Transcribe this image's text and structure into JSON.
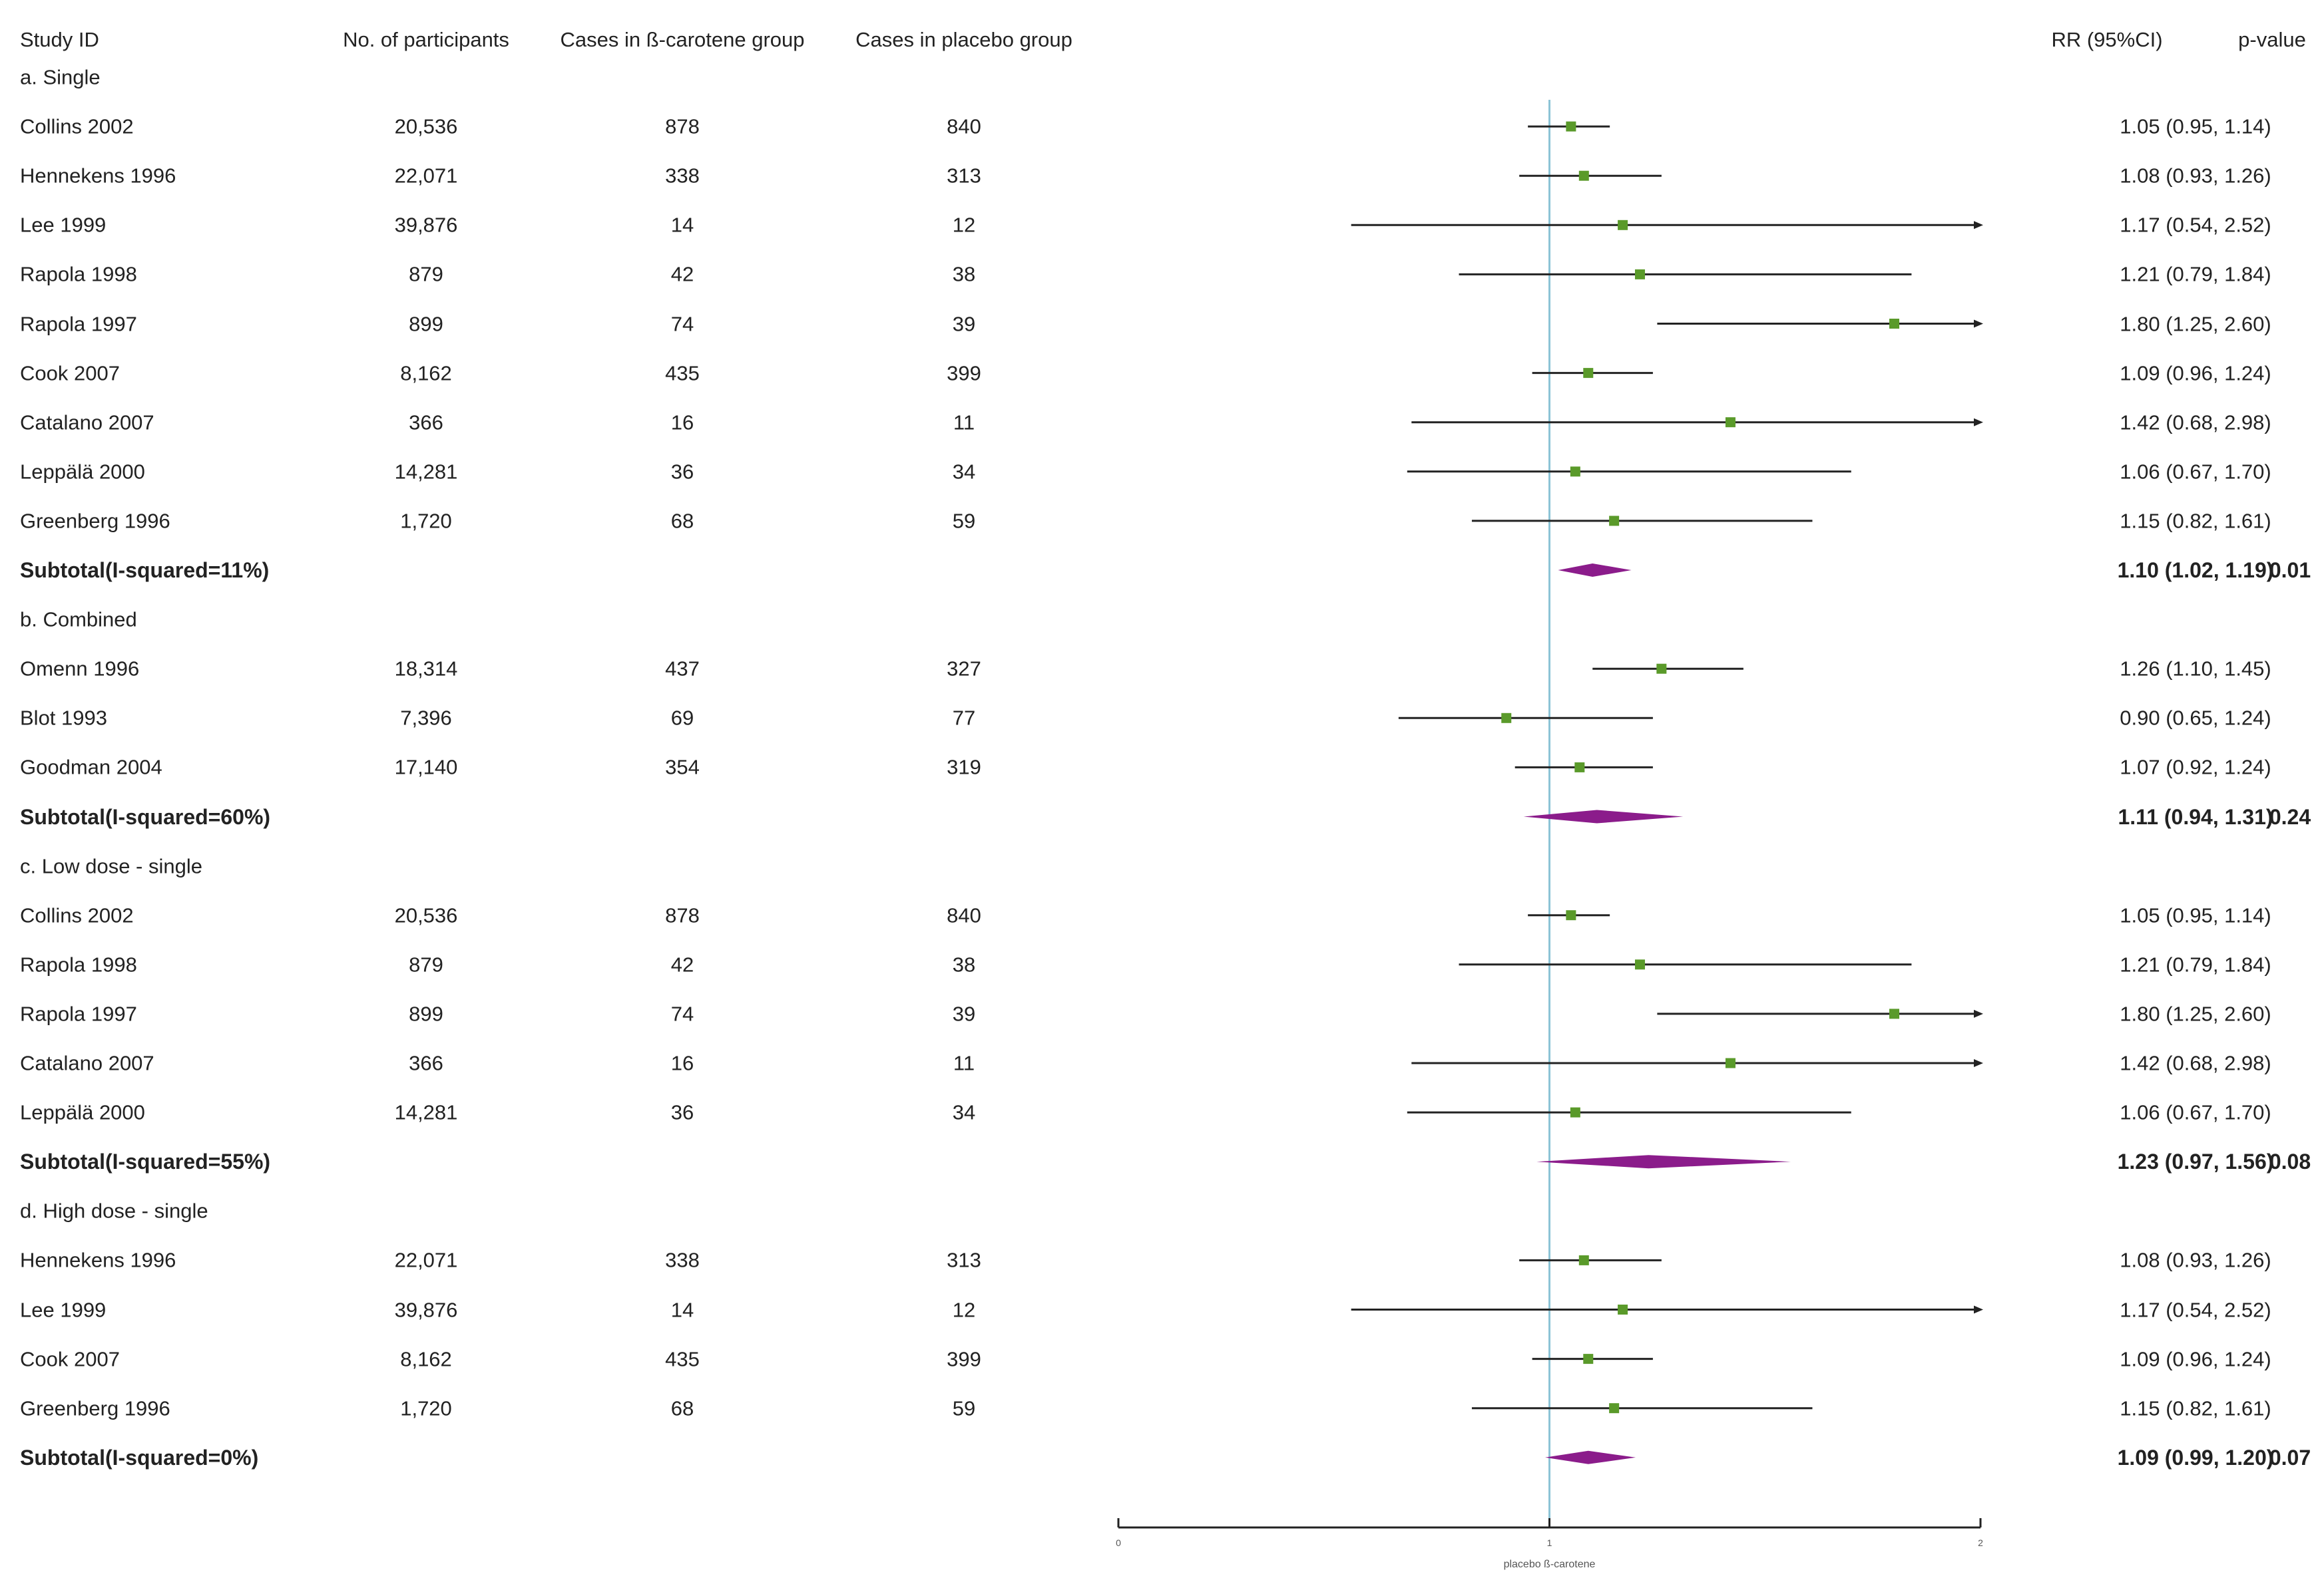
{
  "headers": {
    "study_id": "Study ID",
    "participants": "No. of participants",
    "beta_cases": "Cases in ß-carotene group",
    "placebo_cases": "Cases in placebo group",
    "rr": "RR (95%CI)",
    "pvalue": "p-value"
  },
  "rows": [
    {
      "type": "group",
      "label": "a. Single"
    },
    {
      "type": "study",
      "study": "Collins  2002",
      "participants": "20,536",
      "beta": "878",
      "placebo": "840",
      "rr_text": "1.05 (0.95, 1.14)",
      "rr": 1.05,
      "lo": 0.95,
      "hi": 1.14
    },
    {
      "type": "study",
      "study": "Hennekens 1996",
      "participants": "22,071",
      "beta": "338",
      "placebo": "313",
      "rr_text": "1.08 (0.93, 1.26)",
      "rr": 1.08,
      "lo": 0.93,
      "hi": 1.26
    },
    {
      "type": "study",
      "study": "Lee 1999",
      "participants": "39,876",
      "beta": "14",
      "placebo": "12",
      "rr_text": "1.17 (0.54, 2.52)",
      "rr": 1.17,
      "lo": 0.54,
      "hi": 2.52
    },
    {
      "type": "study",
      "study": "Rapola 1998",
      "participants": "879",
      "beta": "42",
      "placebo": "38",
      "rr_text": "1.21 (0.79, 1.84)",
      "rr": 1.21,
      "lo": 0.79,
      "hi": 1.84
    },
    {
      "type": "study",
      "study": "Rapola 1997",
      "participants": "899",
      "beta": "74",
      "placebo": "39",
      "rr_text": "1.80 (1.25, 2.60)",
      "rr": 1.8,
      "lo": 1.25,
      "hi": 2.6
    },
    {
      "type": "study",
      "study": "Cook 2007",
      "participants": "8,162",
      "beta": "435",
      "placebo": "399",
      "rr_text": "1.09 (0.96, 1.24)",
      "rr": 1.09,
      "lo": 0.96,
      "hi": 1.24
    },
    {
      "type": "study",
      "study": "Catalano 2007",
      "participants": "366",
      "beta": "16",
      "placebo": "11",
      "rr_text": "1.42 (0.68, 2.98)",
      "rr": 1.42,
      "lo": 0.68,
      "hi": 2.98
    },
    {
      "type": "study",
      "study": "Leppälä 2000",
      "participants": "14,281",
      "beta": "36",
      "placebo": "34",
      "rr_text": "1.06 (0.67, 1.70)",
      "rr": 1.06,
      "lo": 0.67,
      "hi": 1.7
    },
    {
      "type": "study",
      "study": "Greenberg 1996",
      "participants": "1,720",
      "beta": "68",
      "placebo": "59",
      "rr_text": "1.15 (0.82, 1.61)",
      "rr": 1.15,
      "lo": 0.82,
      "hi": 1.61
    },
    {
      "type": "subtotal",
      "label": "Subtotal(I-squared=11%)",
      "rr_text": "1.10 (1.02, 1.19)",
      "p": "0.01",
      "rr": 1.1,
      "lo": 1.02,
      "hi": 1.19
    },
    {
      "type": "group",
      "label": "b. Combined"
    },
    {
      "type": "study",
      "study": "Omenn 1996",
      "participants": "18,314",
      "beta": "437",
      "placebo": "327",
      "rr_text": "1.26 (1.10, 1.45)",
      "rr": 1.26,
      "lo": 1.1,
      "hi": 1.45
    },
    {
      "type": "study",
      "study": "Blot 1993",
      "participants": "7,396",
      "beta": "69",
      "placebo": "77",
      "rr_text": "0.90 (0.65, 1.24)",
      "rr": 0.9,
      "lo": 0.65,
      "hi": 1.24
    },
    {
      "type": "study",
      "study": "Goodman 2004",
      "participants": "17,140",
      "beta": "354",
      "placebo": "319",
      "rr_text": "1.07 (0.92, 1.24)",
      "rr": 1.07,
      "lo": 0.92,
      "hi": 1.24
    },
    {
      "type": "subtotal",
      "label": "Subtotal(I-squared=60%)",
      "rr_text": "1.11 (0.94, 1.31)",
      "p": "0.24",
      "rr": 1.11,
      "lo": 0.94,
      "hi": 1.31
    },
    {
      "type": "group",
      "label": "c. Low dose - single"
    },
    {
      "type": "study",
      "study": "Collins  2002",
      "participants": "20,536",
      "beta": "878",
      "placebo": "840",
      "rr_text": "1.05 (0.95, 1.14)",
      "rr": 1.05,
      "lo": 0.95,
      "hi": 1.14
    },
    {
      "type": "study",
      "study": "Rapola 1998",
      "participants": "879",
      "beta": "42",
      "placebo": "38",
      "rr_text": "1.21 (0.79, 1.84)",
      "rr": 1.21,
      "lo": 0.79,
      "hi": 1.84
    },
    {
      "type": "study",
      "study": "Rapola 1997",
      "participants": "899",
      "beta": "74",
      "placebo": "39",
      "rr_text": "1.80 (1.25, 2.60)",
      "rr": 1.8,
      "lo": 1.25,
      "hi": 2.6
    },
    {
      "type": "study",
      "study": "Catalano 2007",
      "participants": "366",
      "beta": "16",
      "placebo": "11",
      "rr_text": "1.42 (0.68, 2.98)",
      "rr": 1.42,
      "lo": 0.68,
      "hi": 2.98
    },
    {
      "type": "study",
      "study": "Leppälä 2000",
      "participants": "14,281",
      "beta": "36",
      "placebo": "34",
      "rr_text": "1.06 (0.67, 1.70)",
      "rr": 1.06,
      "lo": 0.67,
      "hi": 1.7
    },
    {
      "type": "subtotal",
      "label": "Subtotal(I-squared=55%)",
      "rr_text": "1.23 (0.97, 1.56)",
      "p": "0.08",
      "rr": 1.23,
      "lo": 0.97,
      "hi": 1.56
    },
    {
      "type": "group",
      "label": "d. High dose - single"
    },
    {
      "type": "study",
      "study": "Hennekens 1996",
      "participants": "22,071",
      "beta": "338",
      "placebo": "313",
      "rr_text": "1.08 (0.93, 1.26)",
      "rr": 1.08,
      "lo": 0.93,
      "hi": 1.26
    },
    {
      "type": "study",
      "study": "Lee 1999",
      "participants": "39,876",
      "beta": "14",
      "placebo": "12",
      "rr_text": "1.17 (0.54, 2.52)",
      "rr": 1.17,
      "lo": 0.54,
      "hi": 2.52
    },
    {
      "type": "study",
      "study": "Cook 2007",
      "participants": "8,162",
      "beta": "435",
      "placebo": "399",
      "rr_text": "1.09 (0.96, 1.24)",
      "rr": 1.09,
      "lo": 0.96,
      "hi": 1.24
    },
    {
      "type": "study",
      "study": "Greenberg 1996",
      "participants": "1,720",
      "beta": "68",
      "placebo": "59",
      "rr_text": "1.15 (0.82, 1.61)",
      "rr": 1.15,
      "lo": 0.82,
      "hi": 1.61
    },
    {
      "type": "subtotal",
      "label": "Subtotal(I-squared=0%)",
      "rr_text": "1.09 (0.99, 1.20)",
      "p": "0.07",
      "rr": 1.09,
      "lo": 0.99,
      "hi": 1.2
    }
  ],
  "chart_data": {
    "type": "forest",
    "measure": "RR",
    "null_value": 1,
    "xlim": [
      0,
      2
    ],
    "axis_ticks": [
      "0",
      "1",
      "2"
    ],
    "axis_label": "placebo ß-carotene",
    "marker_color": "#5a9a2a",
    "diamond_color": "#8b1c8b",
    "line_color": "#222222",
    "ref_line_color": "#8cc4d6"
  }
}
